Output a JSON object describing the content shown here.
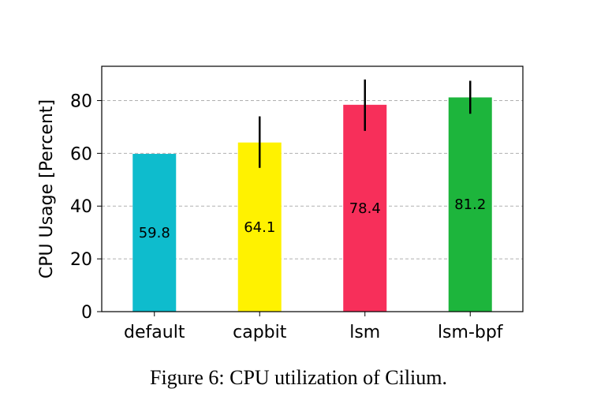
{
  "chart_data": {
    "type": "bar",
    "categories": [
      "default",
      "capbit",
      "lsm",
      "lsm-bpf"
    ],
    "values": [
      59.8,
      64.1,
      78.4,
      81.2
    ],
    "error_bars": [
      {
        "low": 59.8,
        "high": 59.8
      },
      {
        "low": 54.5,
        "high": 74.0
      },
      {
        "low": 68.5,
        "high": 88.0
      },
      {
        "low": 75.0,
        "high": 87.5
      }
    ],
    "data_labels": [
      "59.8",
      "64.1",
      "78.4",
      "81.2"
    ],
    "colors": [
      "#0ebccd",
      "#fff200",
      "#f72f5a",
      "#1db53c"
    ],
    "ylabel": "CPU Usage [Percent]",
    "xlabel": "",
    "ylim": [
      0,
      93
    ],
    "yticks": [
      0,
      20,
      40,
      60,
      80
    ],
    "grid": "y-dashed",
    "caption": "Figure 6: CPU utilization of Cilium."
  }
}
